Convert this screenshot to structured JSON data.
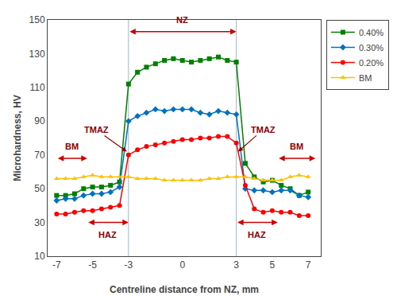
{
  "chart_data": {
    "type": "line",
    "xlabel": "Centreline distance from NZ, mm",
    "ylabel": "Microhardness, HV",
    "xlim": [
      -7.5,
      7.7
    ],
    "ylim": [
      10,
      150
    ],
    "xticks": [
      -7,
      -5,
      -3,
      0,
      3,
      5,
      7
    ],
    "yticks": [
      10,
      30,
      50,
      70,
      90,
      110,
      130,
      150
    ],
    "grid": false,
    "legend": "upper right",
    "x": [
      -7,
      -6.5,
      -6,
      -5.5,
      -5,
      -4.5,
      -4,
      -3.5,
      -3,
      -2.5,
      -2,
      -1.5,
      -1,
      -0.5,
      0,
      0.5,
      1,
      1.5,
      2,
      2.5,
      3,
      3.5,
      4,
      4.5,
      5,
      5.5,
      6,
      6.5,
      7
    ],
    "series": [
      {
        "name": "0.40%",
        "color": "#008000",
        "marker": "square",
        "values": [
          46,
          46,
          47,
          50,
          51,
          51,
          52,
          54,
          112,
          119,
          122,
          124,
          126,
          127,
          126,
          125,
          126,
          127,
          128,
          126,
          125,
          65,
          57,
          54,
          55,
          52,
          50,
          46,
          48
        ]
      },
      {
        "name": "0.30%",
        "color": "#0070c0",
        "marker": "diamond",
        "values": [
          43,
          44,
          44,
          46,
          47,
          47,
          48,
          51,
          90,
          93,
          95,
          97,
          96,
          97,
          97,
          97,
          95,
          94,
          96,
          95,
          94,
          50,
          49,
          49,
          48,
          49,
          49,
          46,
          45
        ]
      },
      {
        "name": "0.20%",
        "color": "#ff0000",
        "marker": "circle",
        "values": [
          35,
          35,
          36,
          37,
          37,
          38,
          39,
          40,
          70,
          73,
          75,
          76,
          77,
          78,
          79,
          79,
          80,
          80,
          81,
          81,
          77,
          52,
          38,
          36,
          37,
          36,
          36,
          34,
          34
        ]
      },
      {
        "name": "BM",
        "color": "#ffc000",
        "marker": "triangle-up",
        "values": [
          56,
          56,
          56,
          57,
          58,
          57,
          57,
          57,
          57,
          56,
          56,
          56,
          55,
          55,
          55,
          55,
          55,
          56,
          56,
          57,
          57,
          57,
          56,
          55,
          55,
          55,
          57,
          58,
          57
        ]
      }
    ],
    "vlines": {
      "x": [
        -3.0,
        3.0
      ],
      "color": "#a0b8c8"
    },
    "annotations": [
      {
        "text": "NZ",
        "x": 0,
        "y": 146,
        "color": "#8b0000",
        "arrow": {
          "x": [
            -3.0,
            3.0
          ],
          "y": 143,
          "color": "#cc0000"
        }
      },
      {
        "text": "BM",
        "x": -6.15,
        "y": 71.5,
        "color": "#8b0000",
        "arrow": {
          "x": [
            -7.0,
            -5.3
          ],
          "y": 68,
          "color": "#cc0000"
        }
      },
      {
        "text": "BM",
        "x": 6.35,
        "y": 71.5,
        "color": "#8b0000",
        "arrow": {
          "x": [
            5.3,
            7.4
          ],
          "y": 68,
          "color": "#cc0000"
        }
      },
      {
        "text": "HAZ",
        "x": -4.15,
        "y": 26.5,
        "color": "#8b0000",
        "arrow": {
          "x": [
            -5.3,
            -3.0
          ],
          "y": 30,
          "color": "#cc0000"
        }
      },
      {
        "text": "HAZ",
        "x": 4.15,
        "y": 26.5,
        "color": "#8b0000",
        "arrow": {
          "x": [
            3.0,
            5.3
          ],
          "y": 30,
          "color": "#cc0000"
        }
      },
      {
        "text": "TMAZ",
        "x": -4.8,
        "y": 85,
        "color": "#8b0000",
        "arrow": {
          "x": -3.1,
          "y": 72,
          "color": "#8b0000"
        }
      },
      {
        "text": "TMAZ",
        "x": 4.5,
        "y": 85,
        "color": "#8b0000",
        "arrow": {
          "x": 3.1,
          "y": 72,
          "color": "#8b0000"
        }
      }
    ]
  }
}
